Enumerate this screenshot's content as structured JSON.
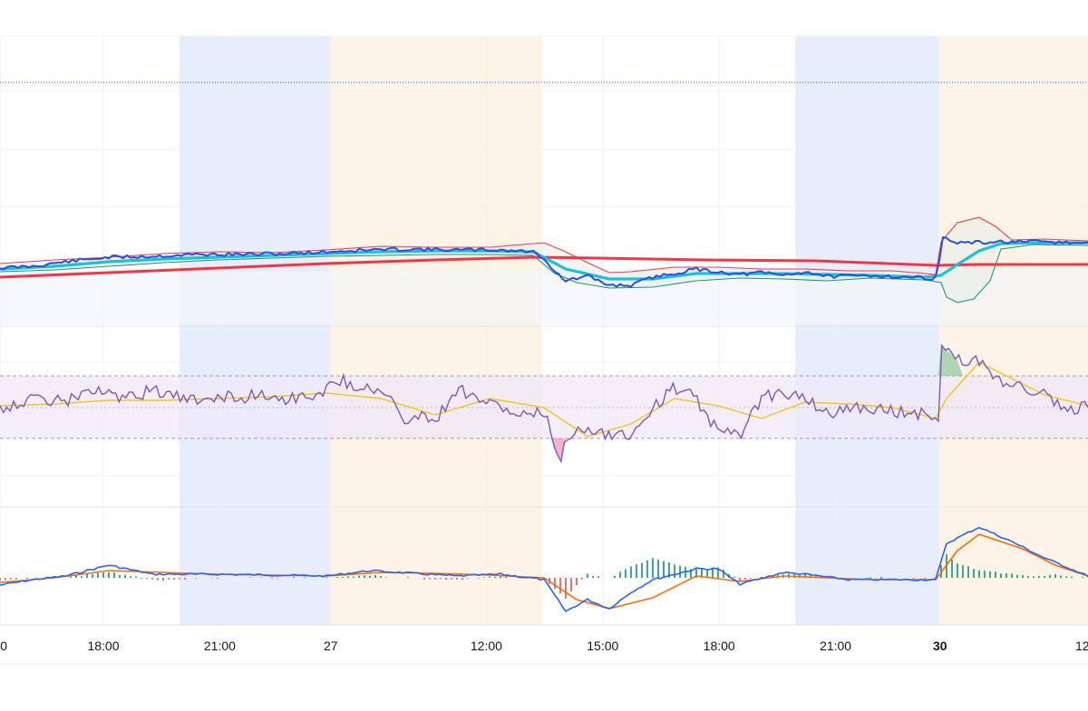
{
  "chart_data": {
    "type": "line",
    "x_axis": {
      "ticks": [
        {
          "label": "0",
          "pos": 0,
          "bold": false
        },
        {
          "label": "18:00",
          "pos": 0.095,
          "bold": false
        },
        {
          "label": "21:00",
          "pos": 0.202,
          "bold": false
        },
        {
          "label": "27",
          "pos": 0.304,
          "bold": false
        },
        {
          "label": "12:00",
          "pos": 0.447,
          "bold": false
        },
        {
          "label": "15:00",
          "pos": 0.554,
          "bold": false
        },
        {
          "label": "18:00",
          "pos": 0.661,
          "bold": false
        },
        {
          "label": "21:00",
          "pos": 0.768,
          "bold": false
        },
        {
          "label": "30",
          "pos": 0.864,
          "bold": true
        },
        {
          "label": "12",
          "pos": 1.0,
          "bold": false
        }
      ]
    },
    "sessions": [
      {
        "kind": "asia",
        "from": 0.165,
        "to": 0.303,
        "color": "#e8edfc"
      },
      {
        "kind": "london",
        "from": 0.303,
        "to": 0.498,
        "color": "#fdf3e6"
      },
      {
        "kind": "asia",
        "from": 0.731,
        "to": 0.863,
        "color": "#e8edfc"
      },
      {
        "kind": "london",
        "from": 0.863,
        "to": 1.0,
        "color": "#fdf3e6"
      }
    ],
    "colors": {
      "price": "#2b4fe3",
      "ema_fast": "#1ec0d8",
      "ema_slow": "#f23645",
      "band_upper": "#ef3b4b",
      "band_lower": "#179980",
      "rsi": "#7e57c2",
      "rsi_ma": "#f5c518",
      "rsi_band": "#efe8f8",
      "macd": "#2962ff",
      "signal": "#ff6d00",
      "hist_up": "#1a9a85",
      "hist_down": "#ef5350",
      "reference_line": "#2b4fe3"
    },
    "price_pane": {
      "price": [
        [
          0,
          296
        ],
        [
          0.03,
          294
        ],
        [
          0.06,
          289
        ],
        [
          0.1,
          284
        ],
        [
          0.14,
          283
        ],
        [
          0.18,
          281
        ],
        [
          0.22,
          281
        ],
        [
          0.26,
          280
        ],
        [
          0.3,
          278
        ],
        [
          0.34,
          276
        ],
        [
          0.38,
          275
        ],
        [
          0.42,
          276
        ],
        [
          0.46,
          276
        ],
        [
          0.49,
          278
        ],
        [
          0.5,
          285
        ],
        [
          0.51,
          300
        ],
        [
          0.52,
          310
        ],
        [
          0.54,
          305
        ],
        [
          0.56,
          315
        ],
        [
          0.58,
          315
        ],
        [
          0.6,
          306
        ],
        [
          0.62,
          302
        ],
        [
          0.64,
          297
        ],
        [
          0.66,
          300
        ],
        [
          0.68,
          303
        ],
        [
          0.7,
          301
        ],
        [
          0.72,
          304
        ],
        [
          0.74,
          300
        ],
        [
          0.76,
          305
        ],
        [
          0.78,
          305
        ],
        [
          0.8,
          304
        ],
        [
          0.83,
          306
        ],
        [
          0.86,
          307
        ],
        [
          0.862,
          307
        ],
        [
          0.865,
          262
        ],
        [
          0.88,
          268
        ],
        [
          0.9,
          268
        ],
        [
          0.92,
          267
        ],
        [
          0.94,
          267
        ],
        [
          0.96,
          267
        ],
        [
          0.98,
          268
        ],
        [
          1.0,
          269
        ]
      ],
      "ema_fast": [
        [
          0,
          297
        ],
        [
          0.05,
          294
        ],
        [
          0.1,
          289
        ],
        [
          0.15,
          286
        ],
        [
          0.2,
          284
        ],
        [
          0.25,
          282
        ],
        [
          0.3,
          280
        ],
        [
          0.35,
          278
        ],
        [
          0.4,
          277
        ],
        [
          0.45,
          277
        ],
        [
          0.49,
          278
        ],
        [
          0.52,
          297
        ],
        [
          0.56,
          308
        ],
        [
          0.6,
          308
        ],
        [
          0.64,
          302
        ],
        [
          0.68,
          302
        ],
        [
          0.72,
          302
        ],
        [
          0.76,
          303
        ],
        [
          0.8,
          304
        ],
        [
          0.85,
          306
        ],
        [
          0.865,
          304
        ],
        [
          0.88,
          292
        ],
        [
          0.9,
          277
        ],
        [
          0.92,
          269
        ],
        [
          0.95,
          268
        ],
        [
          1.0,
          268
        ]
      ],
      "ema_slow": [
        [
          0,
          306
        ],
        [
          0.1,
          301
        ],
        [
          0.2,
          296
        ],
        [
          0.3,
          291
        ],
        [
          0.4,
          287
        ],
        [
          0.49,
          284
        ],
        [
          0.55,
          285
        ],
        [
          0.65,
          287
        ],
        [
          0.75,
          288
        ],
        [
          0.86,
          293
        ],
        [
          0.9,
          292
        ],
        [
          1.0,
          292
        ]
      ],
      "band_upper": [
        [
          0,
          291
        ],
        [
          0.05,
          287
        ],
        [
          0.1,
          284
        ],
        [
          0.15,
          280
        ],
        [
          0.2,
          278
        ],
        [
          0.25,
          279
        ],
        [
          0.3,
          276
        ],
        [
          0.35,
          272
        ],
        [
          0.4,
          273
        ],
        [
          0.45,
          273
        ],
        [
          0.5,
          268
        ],
        [
          0.52,
          278
        ],
        [
          0.54,
          290
        ],
        [
          0.56,
          301
        ],
        [
          0.58,
          300
        ],
        [
          0.62,
          295
        ],
        [
          0.66,
          295
        ],
        [
          0.7,
          297
        ],
        [
          0.74,
          297
        ],
        [
          0.78,
          299
        ],
        [
          0.82,
          299
        ],
        [
          0.86,
          303
        ],
        [
          0.865,
          267
        ],
        [
          0.88,
          246
        ],
        [
          0.9,
          240
        ],
        [
          0.915,
          250
        ],
        [
          0.93,
          265
        ],
        [
          0.96,
          264
        ],
        [
          1.0,
          266
        ]
      ],
      "band_lower": [
        [
          0,
          300
        ],
        [
          0.05,
          298
        ],
        [
          0.1,
          294
        ],
        [
          0.15,
          290
        ],
        [
          0.2,
          287
        ],
        [
          0.25,
          285
        ],
        [
          0.3,
          283
        ],
        [
          0.35,
          282
        ],
        [
          0.4,
          281
        ],
        [
          0.45,
          281
        ],
        [
          0.49,
          282
        ],
        [
          0.51,
          302
        ],
        [
          0.53,
          312
        ],
        [
          0.56,
          318
        ],
        [
          0.6,
          317
        ],
        [
          0.64,
          310
        ],
        [
          0.68,
          307
        ],
        [
          0.72,
          308
        ],
        [
          0.76,
          310
        ],
        [
          0.8,
          307
        ],
        [
          0.85,
          309
        ],
        [
          0.865,
          312
        ],
        [
          0.87,
          328
        ],
        [
          0.88,
          334
        ],
        [
          0.895,
          330
        ],
        [
          0.91,
          310
        ],
        [
          0.92,
          275
        ],
        [
          0.95,
          270
        ],
        [
          1.0,
          271
        ]
      ],
      "reference_y": 91
    },
    "rsi_pane": {
      "upper_band": 415,
      "middle": 450,
      "lower_band": 484,
      "rsi": [
        [
          0,
          450
        ],
        [
          0.02,
          444
        ],
        [
          0.04,
          440
        ],
        [
          0.06,
          445
        ],
        [
          0.08,
          430
        ],
        [
          0.1,
          436
        ],
        [
          0.12,
          440
        ],
        [
          0.14,
          430
        ],
        [
          0.16,
          438
        ],
        [
          0.18,
          444
        ],
        [
          0.2,
          436
        ],
        [
          0.22,
          440
        ],
        [
          0.24,
          434
        ],
        [
          0.26,
          440
        ],
        [
          0.28,
          438
        ],
        [
          0.3,
          430
        ],
        [
          0.31,
          418
        ],
        [
          0.32,
          423
        ],
        [
          0.34,
          428
        ],
        [
          0.36,
          440
        ],
        [
          0.37,
          470
        ],
        [
          0.38,
          455
        ],
        [
          0.4,
          465
        ],
        [
          0.42,
          428
        ],
        [
          0.44,
          440
        ],
        [
          0.46,
          450
        ],
        [
          0.48,
          460
        ],
        [
          0.5,
          456
        ],
        [
          0.51,
          490
        ],
        [
          0.515,
          508
        ],
        [
          0.52,
          485
        ],
        [
          0.54,
          470
        ],
        [
          0.56,
          480
        ],
        [
          0.58,
          480
        ],
        [
          0.6,
          450
        ],
        [
          0.62,
          428
        ],
        [
          0.64,
          440
        ],
        [
          0.66,
          478
        ],
        [
          0.68,
          480
        ],
        [
          0.7,
          440
        ],
        [
          0.72,
          432
        ],
        [
          0.74,
          440
        ],
        [
          0.76,
          458
        ],
        [
          0.78,
          450
        ],
        [
          0.8,
          450
        ],
        [
          0.82,
          455
        ],
        [
          0.84,
          456
        ],
        [
          0.86,
          458
        ],
        [
          0.862,
          475
        ],
        [
          0.865,
          380
        ],
        [
          0.88,
          398
        ],
        [
          0.9,
          400
        ],
        [
          0.92,
          420
        ],
        [
          0.94,
          428
        ],
        [
          0.96,
          435
        ],
        [
          0.98,
          455
        ],
        [
          1.0,
          448
        ]
      ],
      "rsi_ma": [
        [
          0,
          448
        ],
        [
          0.05,
          446
        ],
        [
          0.1,
          442
        ],
        [
          0.15,
          442
        ],
        [
          0.2,
          440
        ],
        [
          0.25,
          438
        ],
        [
          0.3,
          434
        ],
        [
          0.35,
          440
        ],
        [
          0.4,
          458
        ],
        [
          0.45,
          440
        ],
        [
          0.5,
          450
        ],
        [
          0.54,
          482
        ],
        [
          0.58,
          468
        ],
        [
          0.62,
          440
        ],
        [
          0.66,
          448
        ],
        [
          0.7,
          462
        ],
        [
          0.74,
          444
        ],
        [
          0.78,
          446
        ],
        [
          0.82,
          450
        ],
        [
          0.86,
          462
        ],
        [
          0.87,
          440
        ],
        [
          0.9,
          400
        ],
        [
          0.93,
          418
        ],
        [
          0.96,
          436
        ],
        [
          1.0,
          448
        ]
      ]
    },
    "macd_pane": {
      "zero": 638,
      "macd": [
        [
          0,
          646
        ],
        [
          0.03,
          640
        ],
        [
          0.06,
          636
        ],
        [
          0.1,
          624
        ],
        [
          0.14,
          634
        ],
        [
          0.2,
          634
        ],
        [
          0.26,
          635
        ],
        [
          0.3,
          636
        ],
        [
          0.34,
          630
        ],
        [
          0.38,
          633
        ],
        [
          0.42,
          636
        ],
        [
          0.46,
          634
        ],
        [
          0.5,
          640
        ],
        [
          0.52,
          675
        ],
        [
          0.54,
          662
        ],
        [
          0.56,
          672
        ],
        [
          0.58,
          654
        ],
        [
          0.6,
          640
        ],
        [
          0.64,
          628
        ],
        [
          0.66,
          628
        ],
        [
          0.68,
          645
        ],
        [
          0.72,
          632
        ],
        [
          0.74,
          634
        ],
        [
          0.78,
          640
        ],
        [
          0.82,
          640
        ],
        [
          0.86,
          640
        ],
        [
          0.87,
          600
        ],
        [
          0.9,
          582
        ],
        [
          0.93,
          598
        ],
        [
          0.96,
          616
        ],
        [
          1.0,
          636
        ]
      ],
      "signal": [
        [
          0,
          643
        ],
        [
          0.05,
          638
        ],
        [
          0.1,
          630
        ],
        [
          0.15,
          632
        ],
        [
          0.2,
          634
        ],
        [
          0.25,
          635
        ],
        [
          0.3,
          636
        ],
        [
          0.35,
          632
        ],
        [
          0.4,
          633
        ],
        [
          0.45,
          635
        ],
        [
          0.5,
          638
        ],
        [
          0.53,
          662
        ],
        [
          0.56,
          672
        ],
        [
          0.6,
          660
        ],
        [
          0.64,
          636
        ],
        [
          0.68,
          642
        ],
        [
          0.72,
          636
        ],
        [
          0.76,
          638
        ],
        [
          0.8,
          640
        ],
        [
          0.86,
          640
        ],
        [
          0.88,
          608
        ],
        [
          0.9,
          590
        ],
        [
          0.94,
          606
        ],
        [
          0.97,
          624
        ],
        [
          1.0,
          636
        ]
      ]
    }
  }
}
